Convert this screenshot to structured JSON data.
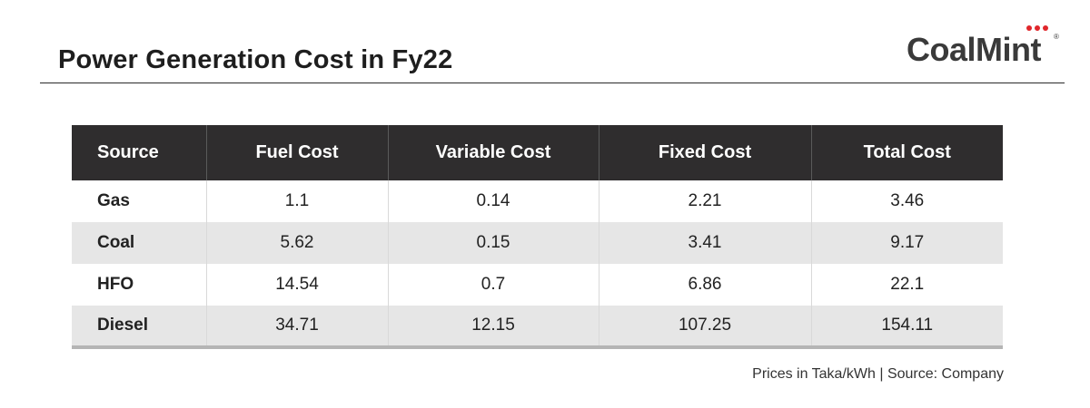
{
  "title": "Power Generation Cost in Fy22",
  "logo": {
    "text": "CoalMint",
    "registered": "®",
    "dot_colors": [
      "#e0262b",
      "#e0262b",
      "#e0262b"
    ]
  },
  "footnote": "Prices in Taka/kWh | Source: Company",
  "chart_data": {
    "type": "table",
    "title": "Power Generation Cost in Fy22",
    "columns": [
      "Source",
      "Fuel Cost",
      "Variable Cost",
      "Fixed Cost",
      "Total Cost"
    ],
    "rows": [
      [
        "Gas",
        "1.1",
        "0.14",
        "2.21",
        "3.46"
      ],
      [
        "Coal",
        "5.62",
        "0.15",
        "3.41",
        "9.17"
      ],
      [
        "HFO",
        "14.54",
        "0.7",
        "6.86",
        "22.1"
      ],
      [
        "Diesel",
        "34.71",
        "12.15",
        "107.25",
        "154.11"
      ]
    ],
    "header_color": "#2f2d2e",
    "stripe_color": "#e6e6e6"
  }
}
